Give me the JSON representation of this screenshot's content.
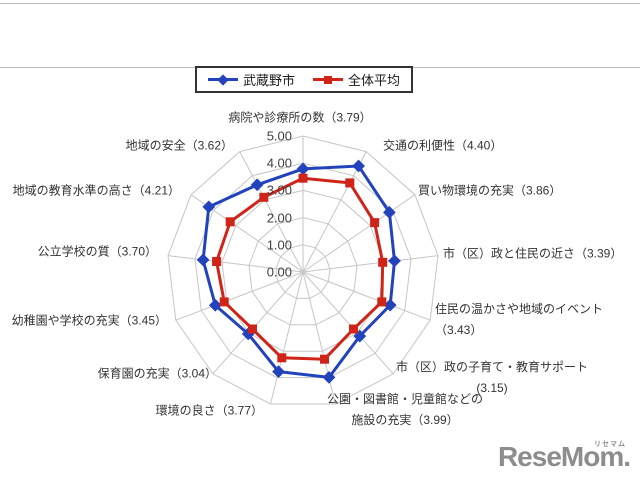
{
  "legend": {
    "items": [
      {
        "label": "武蔵野市",
        "color": "#2243BC",
        "marker": "diamond"
      },
      {
        "label": "全体平均",
        "color": "#D02419",
        "marker": "square"
      }
    ]
  },
  "chart_data": {
    "type": "radar",
    "categories": [
      "病院や診療所の数",
      "交通の利便性",
      "買い物環境の充実",
      "市（区）政と住民の近さ",
      "住民の温かさや地域のイベント",
      "市（区）政の子育て・教育サポート",
      "公園・図書館・児童館などの施設の充実",
      "環境の良さ",
      "保育園の充実",
      "幼稚園や学校の充実",
      "公立学校の質",
      "地域の教育水準の高さ",
      "地域の安全"
    ],
    "series": [
      {
        "name": "武蔵野市",
        "color": "#2243BC",
        "marker": "diamond",
        "values": [
          3.79,
          4.4,
          3.86,
          3.39,
          3.43,
          3.15,
          3.99,
          3.77,
          3.04,
          3.45,
          3.7,
          4.21,
          3.62
        ]
      },
      {
        "name": "全体平均",
        "color": "#D02419",
        "marker": "square",
        "values": [
          3.45,
          3.7,
          3.2,
          2.95,
          3.1,
          2.8,
          3.3,
          3.25,
          2.8,
          3.1,
          3.2,
          3.25,
          3.1
        ]
      }
    ],
    "axis_display_labels": [
      [
        "病院や診療所の数（3.79）"
      ],
      [
        "交通の利便性（4.40）"
      ],
      [
        "買い物環境の充実（3.86）"
      ],
      [
        "市（区）政と住民の近さ（3.39）"
      ],
      [
        "住民の温かさや地域のイベント（3.43）"
      ],
      [
        "市（区）政の子育て・教育サポート",
        "(3.15)"
      ],
      [
        "公園・図書館・児童館などの",
        "施設の充実（3.99）"
      ],
      [
        "環境の良さ（3.77）"
      ],
      [
        "保育園の充実（3.04）"
      ],
      [
        "幼稚園や学校の充実（3.45）"
      ],
      [
        "公立学校の質（3.70）"
      ],
      [
        "地域の教育水準の高さ（4.21）"
      ],
      [
        "地域の安全（3.62）"
      ]
    ],
    "axis_tick_labels": [
      "0.00",
      "1.00",
      "2.00",
      "3.00",
      "4.00",
      "5.00"
    ],
    "rlim": [
      0,
      5
    ],
    "gridline_color": "#C6C6C6",
    "legend_position": "top"
  },
  "watermark": {
    "text": "ReseMom",
    "ruby": "リセマム",
    "dot": "."
  }
}
